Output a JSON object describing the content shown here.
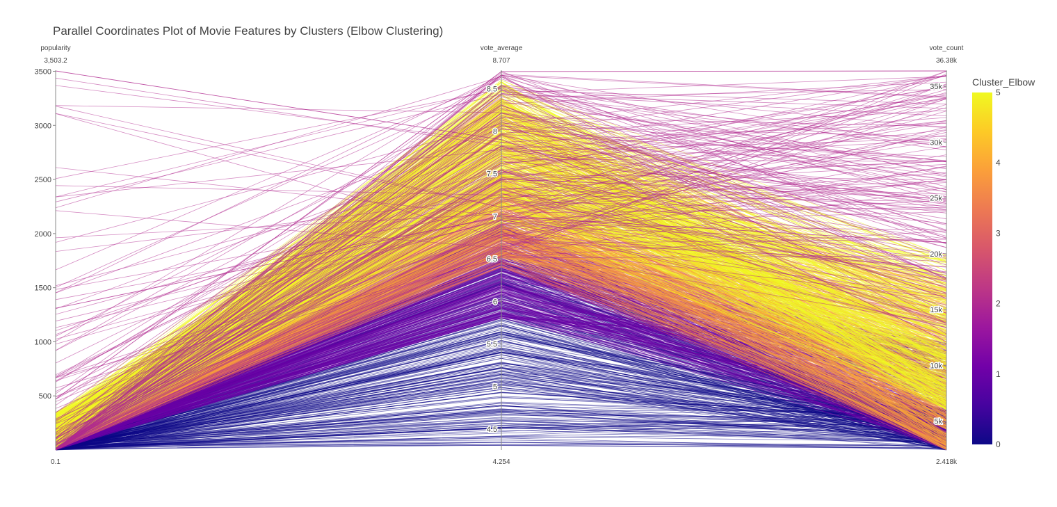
{
  "chart_data": {
    "type": "parallel_coordinates",
    "title": "Parallel Coordinates Plot of Movie Features by Clusters (Elbow Clustering)",
    "dimensions": [
      {
        "name": "popularity",
        "range": [
          0.1,
          3503.2
        ],
        "range_labels": {
          "min": "0.1",
          "max": "3,503.2"
        },
        "ticks": [
          500,
          1000,
          1500,
          2000,
          2500,
          3000,
          3500
        ],
        "tick_labels": [
          "500",
          "1000",
          "1500",
          "2000",
          "2500",
          "3000",
          "3500"
        ]
      },
      {
        "name": "vote_average",
        "range": [
          4.254,
          8.707
        ],
        "range_labels": {
          "min": "4.254",
          "max": "8.707"
        },
        "ticks": [
          4.5,
          5,
          5.5,
          6,
          6.5,
          7,
          7.5,
          8,
          8.5
        ],
        "tick_labels": [
          "4.5",
          "5",
          "5.5",
          "6",
          "6.5",
          "7",
          "7.5",
          "8",
          "8.5"
        ]
      },
      {
        "name": "vote_count",
        "range": [
          2418,
          36380
        ],
        "range_labels": {
          "min": "2.418k",
          "max": "36.38k"
        },
        "ticks": [
          5000,
          10000,
          15000,
          20000,
          25000,
          30000,
          35000
        ],
        "tick_labels": [
          "5k",
          "10k",
          "15k",
          "20k",
          "25k",
          "30k",
          "35k"
        ]
      }
    ],
    "color": {
      "title": "Cluster_Elbow",
      "range": [
        0,
        5
      ],
      "ticks": [
        0,
        1,
        2,
        3,
        4,
        5
      ],
      "tick_labels": [
        "0",
        "1",
        "2",
        "3",
        "4",
        "5"
      ],
      "colorscale": [
        "#0d0887",
        "#46039f",
        "#7201a8",
        "#9c179e",
        "#bd3786",
        "#d8576b",
        "#ed7953",
        "#fb9f3a",
        "#fdca26",
        "#f0f921"
      ]
    },
    "clusters": [
      {
        "cluster": 0,
        "popularity_range": [
          0.1,
          60
        ],
        "vote_average_range": [
          4.3,
          6.5
        ],
        "vote_count_range": [
          2418,
          6000
        ]
      },
      {
        "cluster": 1,
        "popularity_range": [
          0.1,
          100
        ],
        "vote_average_range": [
          5.8,
          6.9
        ],
        "vote_count_range": [
          2418,
          12000
        ]
      },
      {
        "cluster": 2,
        "popularity_range": [
          0.1,
          3503.2
        ],
        "vote_average_range": [
          6.5,
          8.707
        ],
        "vote_count_range": [
          12000,
          36380
        ]
      },
      {
        "cluster": 3,
        "popularity_range": [
          0.1,
          200
        ],
        "vote_average_range": [
          6.4,
          7.5
        ],
        "vote_count_range": [
          2418,
          15000
        ]
      },
      {
        "cluster": 4,
        "popularity_range": [
          0.1,
          300
        ],
        "vote_average_range": [
          6.5,
          8.4
        ],
        "vote_count_range": [
          2418,
          18000
        ]
      },
      {
        "cluster": 5,
        "popularity_range": [
          0.1,
          350
        ],
        "vote_average_range": [
          6.9,
          8.6
        ],
        "vote_count_range": [
          6000,
          20000
        ]
      }
    ]
  }
}
